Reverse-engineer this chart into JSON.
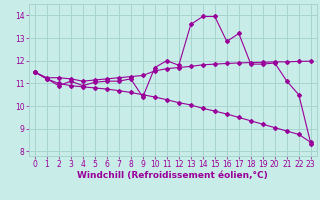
{
  "xlabel": "Windchill (Refroidissement éolien,°C)",
  "bg_color": "#c8ece8",
  "grid_color": "#a8d4d0",
  "line_color": "#990099",
  "x_ticks": [
    0,
    1,
    2,
    3,
    4,
    5,
    6,
    7,
    8,
    9,
    10,
    11,
    12,
    13,
    14,
    15,
    16,
    17,
    18,
    19,
    20,
    21,
    22,
    23
  ],
  "ylim": [
    7.8,
    14.5
  ],
  "xlim": [
    -0.5,
    23.5
  ],
  "yticks": [
    8,
    9,
    10,
    11,
    12,
    13,
    14
  ],
  "series1_x": [
    0,
    1,
    2,
    3,
    4,
    5,
    6,
    7,
    8,
    9,
    10,
    11,
    12,
    13,
    14,
    15,
    16,
    17,
    18,
    19,
    20,
    21,
    22,
    23
  ],
  "series1_y": [
    11.5,
    11.2,
    10.9,
    11.1,
    10.9,
    11.05,
    11.1,
    11.1,
    11.2,
    10.4,
    11.7,
    12.0,
    11.8,
    13.6,
    13.95,
    13.95,
    12.85,
    13.2,
    11.85,
    11.85,
    11.9,
    11.1,
    10.5,
    8.35
  ],
  "series2_x": [
    0,
    1,
    2,
    3,
    4,
    5,
    6,
    7,
    8,
    9,
    10,
    11,
    12,
    13,
    14,
    15,
    16,
    17,
    18,
    19,
    20,
    21,
    22,
    23
  ],
  "series2_y": [
    11.5,
    11.25,
    11.25,
    11.2,
    11.1,
    11.15,
    11.2,
    11.25,
    11.3,
    11.35,
    11.55,
    11.65,
    11.7,
    11.75,
    11.82,
    11.85,
    11.88,
    11.9,
    11.92,
    11.93,
    11.95,
    11.95,
    11.97,
    11.98
  ],
  "series3_x": [
    0,
    1,
    2,
    3,
    4,
    5,
    6,
    7,
    8,
    9,
    10,
    11,
    12,
    13,
    14,
    15,
    16,
    17,
    18,
    19,
    20,
    21,
    22,
    23
  ],
  "series3_y": [
    11.5,
    11.2,
    11.0,
    10.9,
    10.85,
    10.8,
    10.75,
    10.68,
    10.6,
    10.5,
    10.4,
    10.28,
    10.15,
    10.05,
    9.9,
    9.78,
    9.65,
    9.5,
    9.35,
    9.2,
    9.05,
    8.9,
    8.75,
    8.4
  ]
}
